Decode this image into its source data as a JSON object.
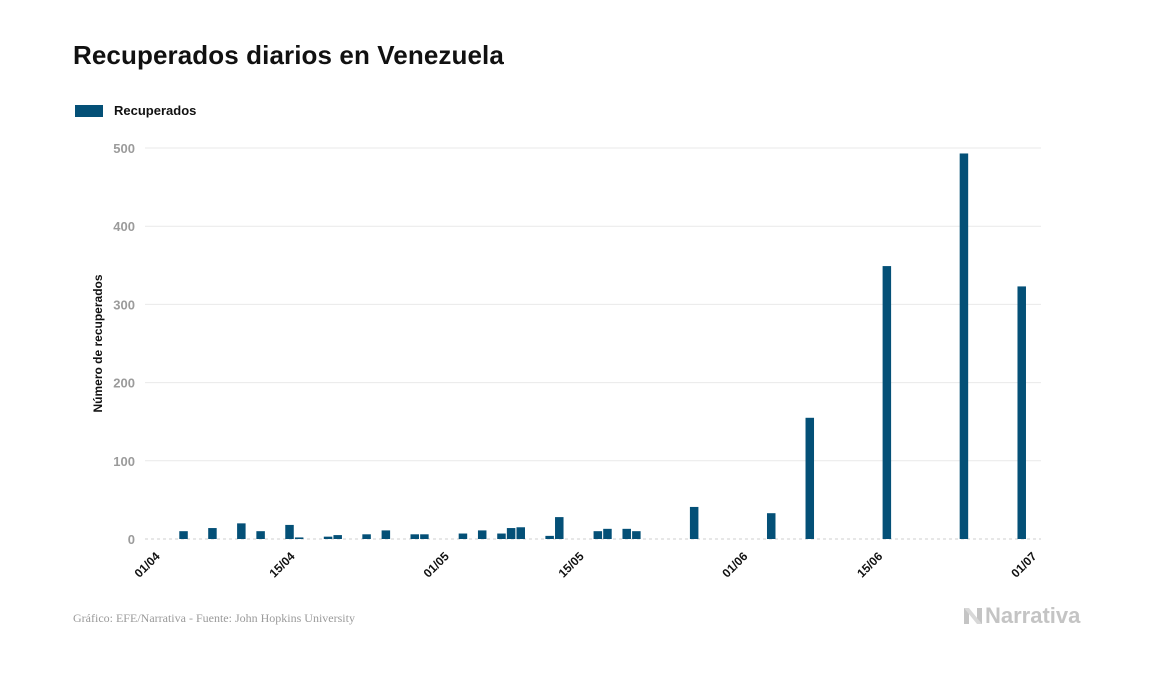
{
  "header": {
    "title": "Recuperados diarios en Venezuela"
  },
  "legend": {
    "label": "Recuperados",
    "color": "#045077"
  },
  "footer": {
    "source": "Gráfico: EFE/Narrativa - Fuente: John Hopkins University",
    "logo_text": "Narrativa"
  },
  "chart_data": {
    "type": "bar",
    "title": "Recuperados diarios en Venezuela",
    "ylabel": "Número de recuperados",
    "xlabel": "",
    "ylim": [
      0,
      500
    ],
    "yticks": [
      0,
      100,
      200,
      300,
      400,
      500
    ],
    "grid": true,
    "legend_position": "top-left",
    "x_start": "2020-03-31",
    "x_end": "2020-07-02",
    "xticks": [
      {
        "date": "2020-04-01",
        "label": "01/04"
      },
      {
        "date": "2020-04-15",
        "label": "15/04"
      },
      {
        "date": "2020-05-01",
        "label": "01/05"
      },
      {
        "date": "2020-05-15",
        "label": "15/05"
      },
      {
        "date": "2020-06-01",
        "label": "01/06"
      },
      {
        "date": "2020-06-15",
        "label": "15/06"
      },
      {
        "date": "2020-07-01",
        "label": "01/07"
      }
    ],
    "series": [
      {
        "name": "Recuperados",
        "color": "#045077",
        "points": [
          {
            "date": "2020-04-04",
            "value": 10
          },
          {
            "date": "2020-04-07",
            "value": 14
          },
          {
            "date": "2020-04-10",
            "value": 20
          },
          {
            "date": "2020-04-12",
            "value": 10
          },
          {
            "date": "2020-04-15",
            "value": 18
          },
          {
            "date": "2020-04-16",
            "value": 2
          },
          {
            "date": "2020-04-19",
            "value": 3
          },
          {
            "date": "2020-04-20",
            "value": 5
          },
          {
            "date": "2020-04-23",
            "value": 6
          },
          {
            "date": "2020-04-25",
            "value": 11
          },
          {
            "date": "2020-04-28",
            "value": 6
          },
          {
            "date": "2020-04-29",
            "value": 6
          },
          {
            "date": "2020-05-03",
            "value": 7
          },
          {
            "date": "2020-05-05",
            "value": 11
          },
          {
            "date": "2020-05-07",
            "value": 7
          },
          {
            "date": "2020-05-08",
            "value": 14
          },
          {
            "date": "2020-05-09",
            "value": 15
          },
          {
            "date": "2020-05-12",
            "value": 4
          },
          {
            "date": "2020-05-13",
            "value": 28
          },
          {
            "date": "2020-05-17",
            "value": 10
          },
          {
            "date": "2020-05-18",
            "value": 13
          },
          {
            "date": "2020-05-20",
            "value": 13
          },
          {
            "date": "2020-05-21",
            "value": 10
          },
          {
            "date": "2020-05-27",
            "value": 41
          },
          {
            "date": "2020-06-04",
            "value": 33
          },
          {
            "date": "2020-06-08",
            "value": 155
          },
          {
            "date": "2020-06-16",
            "value": 349
          },
          {
            "date": "2020-06-24",
            "value": 493
          },
          {
            "date": "2020-06-30",
            "value": 323
          }
        ]
      }
    ]
  }
}
